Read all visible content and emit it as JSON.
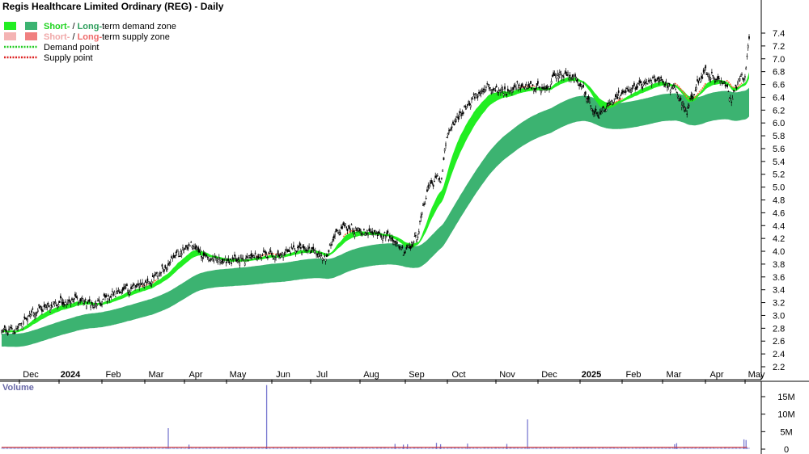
{
  "chart_data": [
    {
      "type": "candlestick",
      "title": "Regis Healthcare Limited Ordinary (REG) - Daily",
      "x_axis_months": [
        "Dec",
        "2024",
        "Feb",
        "Mar",
        "Apr",
        "May",
        "Jun",
        "Jul",
        "Aug",
        "Sep",
        "Oct",
        "Nov",
        "Dec",
        "2025",
        "Feb",
        "Mar",
        "Apr",
        "May"
      ],
      "y_ticks": [
        "2.2",
        "2.4",
        "2.6",
        "2.8",
        "3.0",
        "3.2",
        "3.4",
        "3.6",
        "3.8",
        "4.0",
        "4.2",
        "4.4",
        "4.6",
        "4.8",
        "5.0",
        "5.2",
        "5.4",
        "5.6",
        "5.8",
        "6.0",
        "6.2",
        "6.4",
        "6.6",
        "6.8",
        "7.0",
        "7.2",
        "7.4"
      ],
      "ylim": [
        2.2,
        7.4
      ],
      "grid": false,
      "legend": {
        "placement": "top-left",
        "items": [
          {
            "prefix": "Short-",
            "sep": " / ",
            "mid": "Long-",
            "suffix": "term demand zone",
            "colors": [
              "#22ee22",
              "#3cb371"
            ]
          },
          {
            "prefix": "Short-",
            "sep": " / ",
            "mid": "Long-",
            "suffix": "term supply zone",
            "colors": [
              "#f4b4b4",
              "#f08080"
            ]
          },
          {
            "label": "Demand point",
            "color": "#22cc22"
          },
          {
            "label": "Supply point",
            "color": "#dd2222"
          }
        ]
      },
      "anchors": [
        [
          0,
          2.75
        ],
        [
          12,
          2.75
        ],
        [
          30,
          3.05
        ],
        [
          55,
          3.2
        ],
        [
          75,
          3.25
        ],
        [
          90,
          3.15
        ],
        [
          110,
          3.35
        ],
        [
          130,
          3.45
        ],
        [
          145,
          3.55
        ],
        [
          158,
          3.75
        ],
        [
          168,
          3.95
        ],
        [
          175,
          4.0
        ],
        [
          181,
          4.1
        ],
        [
          188,
          4.05
        ],
        [
          198,
          3.9
        ],
        [
          212,
          3.85
        ],
        [
          230,
          3.85
        ],
        [
          240,
          3.9
        ],
        [
          255,
          3.95
        ],
        [
          268,
          3.95
        ],
        [
          285,
          4.05
        ],
        [
          300,
          4.0
        ],
        [
          313,
          3.9
        ],
        [
          323,
          4.25
        ],
        [
          332,
          4.4
        ],
        [
          345,
          4.3
        ],
        [
          360,
          4.3
        ],
        [
          372,
          4.25
        ],
        [
          380,
          4.15
        ],
        [
          388,
          4.0
        ],
        [
          395,
          4.1
        ],
        [
          401,
          4.2
        ],
        [
          406,
          4.6
        ],
        [
          412,
          5.0
        ],
        [
          418,
          5.1
        ],
        [
          425,
          5.15
        ],
        [
          430,
          5.8
        ],
        [
          440,
          6.05
        ],
        [
          450,
          6.3
        ],
        [
          460,
          6.45
        ],
        [
          470,
          6.55
        ],
        [
          480,
          6.5
        ],
        [
          490,
          6.5
        ],
        [
          500,
          6.6
        ],
        [
          510,
          6.55
        ],
        [
          520,
          6.55
        ],
        [
          528,
          6.55
        ],
        [
          535,
          6.75
        ],
        [
          545,
          6.75
        ],
        [
          560,
          6.6
        ],
        [
          568,
          6.3
        ],
        [
          575,
          6.1
        ],
        [
          585,
          6.25
        ],
        [
          595,
          6.4
        ],
        [
          605,
          6.5
        ],
        [
          620,
          6.6
        ],
        [
          635,
          6.7
        ],
        [
          645,
          6.55
        ],
        [
          650,
          6.55
        ],
        [
          657,
          6.3
        ],
        [
          662,
          6.15
        ],
        [
          670,
          6.55
        ],
        [
          680,
          6.8
        ],
        [
          690,
          6.65
        ],
        [
          700,
          6.6
        ],
        [
          705,
          6.35
        ],
        [
          712,
          6.7
        ],
        [
          718,
          6.75
        ],
        [
          722,
          7.3
        ]
      ],
      "volume": {
        "label": "Volume",
        "y_ticks": [
          "0",
          "5M",
          "10M",
          "15M"
        ],
        "ylim": [
          0,
          18
        ],
        "baseline": 0.5,
        "spikes": [
          {
            "i": 161,
            "v": 6.0
          },
          {
            "i": 256,
            "v": 18.3
          },
          {
            "i": 508,
            "v": 8.5
          },
          {
            "i": 181,
            "v": 1.3
          },
          {
            "i": 380,
            "v": 1.5
          },
          {
            "i": 388,
            "v": 1.3
          },
          {
            "i": 392,
            "v": 1.4
          },
          {
            "i": 420,
            "v": 1.8
          },
          {
            "i": 424,
            "v": 1.4
          },
          {
            "i": 450,
            "v": 1.6
          },
          {
            "i": 488,
            "v": 1.5
          },
          {
            "i": 650,
            "v": 1.4
          },
          {
            "i": 652,
            "v": 1.7
          },
          {
            "i": 717,
            "v": 2.8
          },
          {
            "i": 719,
            "v": 2.6
          }
        ]
      }
    }
  ]
}
